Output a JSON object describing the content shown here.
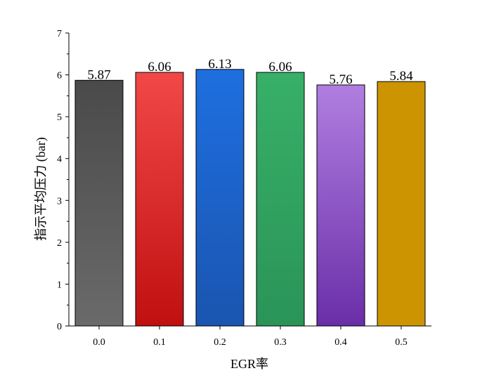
{
  "chart_data": {
    "type": "bar",
    "categories": [
      "0.0",
      "0.1",
      "0.2",
      "0.3",
      "0.4",
      "0.5"
    ],
    "values": [
      5.87,
      6.06,
      6.13,
      6.06,
      5.76,
      5.84
    ],
    "data_labels": [
      "5.87",
      "6.06",
      "6.13",
      "6.06",
      "5.76",
      "5.84"
    ],
    "title": "",
    "xlabel": "EGR率",
    "ylabel": "指示平均压力 (bar)",
    "ylim": [
      0,
      7
    ],
    "yticks": [
      0,
      1,
      2,
      3,
      4,
      5,
      6,
      7
    ],
    "ytick_labels": [
      "0",
      "1",
      "2",
      "3",
      "4",
      "5",
      "6",
      "7"
    ],
    "grid": false,
    "legend": "none",
    "bar_colors": [
      {
        "top": "#4a4a4a",
        "bottom": "#6a6a6a"
      },
      {
        "top": "#f24848",
        "bottom": "#c01010"
      },
      {
        "top": "#1e6fe0",
        "bottom": "#1a55b0"
      },
      {
        "top": "#38b068",
        "bottom": "#2a9458"
      },
      {
        "top": "#b07ee0",
        "bottom": "#6a2ea8"
      },
      {
        "top": "#cc9400",
        "bottom": "#cc9400"
      }
    ]
  }
}
